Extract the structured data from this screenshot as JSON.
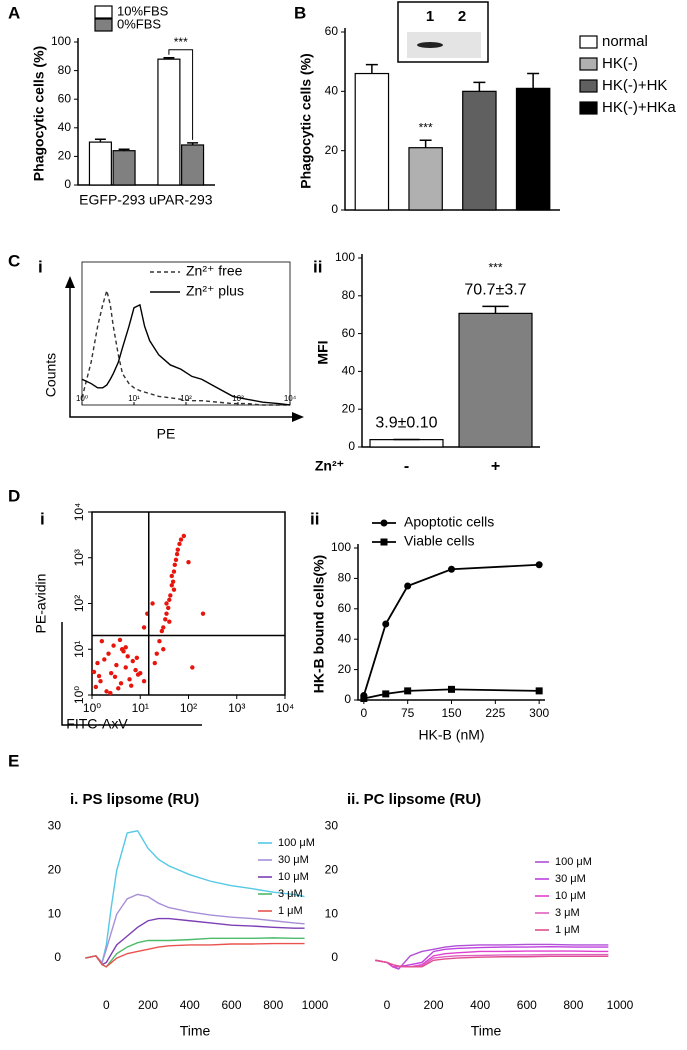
{
  "chart_data": [
    {
      "type": "bar",
      "panel": "A",
      "ylabel": "Phagocytic cells (%)",
      "categories": [
        "EGFP-293",
        "uPAR-293"
      ],
      "series": [
        {
          "name": "10%FBS",
          "color": "#ffffff",
          "values": [
            30,
            88
          ],
          "errors": [
            2,
            1
          ]
        },
        {
          "name": "0%FBS",
          "color": "#808080",
          "values": [
            24,
            28
          ],
          "errors": [
            1,
            1.5
          ]
        }
      ],
      "ylim": [
        0,
        100
      ],
      "yticks": [
        0,
        20,
        40,
        60,
        80,
        100
      ],
      "legend": "top-left",
      "annotation": "***"
    },
    {
      "type": "bar",
      "panel": "B",
      "ylabel": "Phagocytic cells (%)",
      "categories": [
        "normal",
        "HK(-)",
        "HK(-)+HK",
        "HK(-)+HKa"
      ],
      "values": [
        46,
        21,
        40,
        41
      ],
      "errors": [
        3,
        2.5,
        3,
        5
      ],
      "colors": [
        "#ffffff",
        "#b0b0b0",
        "#606060",
        "#000000"
      ],
      "ylim": [
        0,
        60
      ],
      "yticks": [
        0,
        20,
        40,
        60
      ],
      "legend": "right",
      "annotation": "***",
      "inset_labels": [
        "1",
        "2"
      ]
    },
    {
      "type": "line",
      "panel": "C",
      "subpanel": "i",
      "xlabel": "PE",
      "ylabel": "Counts",
      "xscale": "log",
      "xlim": [
        1,
        10000
      ],
      "xticks": [
        {
          "value": 1,
          "label": "10⁰"
        },
        {
          "value": 10,
          "label": "10¹"
        },
        {
          "value": 100,
          "label": "10²"
        },
        {
          "value": 1000,
          "label": "10³"
        },
        {
          "value": 10000,
          "label": "10⁴"
        }
      ],
      "ylim": [
        0,
        100
      ],
      "legend": "top-right",
      "x": [
        1,
        1.5,
        2,
        2.5,
        3,
        3.5,
        4,
        5,
        6,
        8,
        10,
        13,
        16,
        20,
        30,
        50,
        80,
        130,
        200,
        400,
        800,
        1500,
        3000,
        6000,
        10000
      ],
      "series": [
        {
          "name": "Zn²⁺ free",
          "color": "#333333",
          "dash": true,
          "values": [
            5,
            30,
            55,
            70,
            80,
            70,
            55,
            35,
            22,
            15,
            12,
            10,
            9,
            8,
            6,
            5,
            4,
            3,
            3,
            2,
            1,
            1,
            0,
            0,
            0
          ]
        },
        {
          "name": "Zn²⁺ plus",
          "color": "#000000",
          "values": [
            18,
            15,
            12,
            12,
            14,
            18,
            22,
            30,
            40,
            55,
            68,
            70,
            55,
            45,
            35,
            28,
            25,
            20,
            18,
            12,
            6,
            4,
            2,
            1,
            0
          ]
        }
      ]
    },
    {
      "type": "bar",
      "subpanel": "ii",
      "ylabel": "MFI",
      "xlabel": "Zn²⁺",
      "categories": [
        "-",
        "+"
      ],
      "values": [
        3.9,
        70.7
      ],
      "errors": [
        0.1,
        3.7
      ],
      "value_labels": [
        "3.9±0.10",
        "70.7±3.7"
      ],
      "colors": [
        "#ffffff",
        "#808080"
      ],
      "ylim": [
        0,
        100
      ],
      "yticks": [
        0,
        20,
        40,
        60,
        80,
        100
      ],
      "annotation": "***"
    },
    {
      "type": "scatter",
      "panel": "D",
      "subpanel": "i",
      "xlabel": "FITC-AxV",
      "ylabel": "PE-avidin",
      "xscale": "log",
      "yscale": "log",
      "color": "#e8150c",
      "xlim": [
        1,
        10000
      ],
      "ylim": [
        1,
        10000
      ],
      "xticks": [
        {
          "value": 1,
          "label": "10⁰"
        },
        {
          "value": 10,
          "label": "10¹"
        },
        {
          "value": 100,
          "label": "10²"
        },
        {
          "value": 1000,
          "label": "10³"
        },
        {
          "value": 10000,
          "label": "10⁴"
        }
      ],
      "yticks": [
        {
          "value": 1,
          "label": "10⁰"
        },
        {
          "value": 10,
          "label": "10¹"
        },
        {
          "value": 100,
          "label": "10²"
        },
        {
          "value": 1000,
          "label": "10³"
        },
        {
          "value": 10000,
          "label": "10⁴"
        }
      ],
      "quadrant_x": 15,
      "quadrant_y": 20,
      "x": [
        1.2,
        1.5,
        2,
        2.5,
        3,
        4,
        5,
        6,
        8,
        1.3,
        1.8,
        2.2,
        3.5,
        4.5,
        7,
        9,
        1.1,
        2.8,
        5.5,
        6.5,
        1.6,
        3.2,
        4.2,
        8.5,
        10,
        12,
        2.4,
        1.4,
        3.8,
        5,
        20,
        25,
        30,
        35,
        40,
        45,
        50,
        55,
        60,
        70,
        80,
        22,
        28,
        33,
        38,
        42,
        48,
        52,
        58,
        65,
        30,
        40,
        50,
        45,
        35,
        120,
        200,
        100,
        12,
        14,
        18
      ],
      "y": [
        1.5,
        2,
        1.2,
        3,
        2.5,
        1.8,
        4,
        2.2,
        3.5,
        5,
        6,
        8,
        1.4,
        9,
        5.5,
        2.8,
        3.2,
        12,
        7,
        1.6,
        15,
        4.5,
        10,
        6.5,
        3,
        2,
        1.1,
        2.6,
        16,
        11,
        5,
        15,
        30,
        60,
        120,
        250,
        500,
        900,
        1500,
        2500,
        3000,
        8,
        25,
        45,
        80,
        150,
        300,
        700,
        1200,
        2000,
        10,
        40,
        200,
        400,
        100,
        4,
        60,
        800,
        30,
        60,
        100
      ]
    },
    {
      "type": "line",
      "subpanel": "ii",
      "xlabel": "HK-B (nM)",
      "ylabel": "HK-B bound cells(%)",
      "legend": "top-left",
      "xlim": [
        -10,
        310
      ],
      "xticks": [
        0,
        75,
        150,
        225,
        300
      ],
      "ylim": [
        0,
        100
      ],
      "yticks": [
        0,
        20,
        40,
        60,
        80,
        100
      ],
      "x": [
        0,
        37.5,
        75,
        150,
        300
      ],
      "series": [
        {
          "name": "Apoptotic cells",
          "color": "#000000",
          "marker": "circle",
          "values": [
            3,
            50,
            75,
            86,
            89
          ],
          "errors": [
            1,
            3,
            3,
            4,
            4
          ]
        },
        {
          "name": "Viable cells",
          "color": "#000000",
          "marker": "square",
          "values": [
            1,
            4,
            6,
            7,
            6
          ],
          "errors": [
            1,
            2,
            3,
            2,
            1
          ]
        }
      ]
    },
    {
      "type": "line",
      "panel": "E",
      "title": "i. PS lipsome (RU)",
      "xlabel": "Time",
      "legend": "top-right",
      "xlim": [
        -150,
        1000
      ],
      "xticks": [
        0,
        200,
        400,
        600,
        800,
        1000
      ],
      "ylim": [
        -5,
        31
      ],
      "yticks": [
        0,
        10,
        20,
        30
      ],
      "x": [
        -100,
        -50,
        -20,
        0,
        25,
        50,
        100,
        150,
        200,
        250,
        300,
        400,
        500,
        600,
        700,
        800,
        900,
        950
      ],
      "series": [
        {
          "name": "100 μM",
          "color": "#55c8e6",
          "values": [
            0,
            0.5,
            -1,
            3,
            12,
            20,
            28.5,
            29,
            25,
            22.5,
            21,
            19,
            17.5,
            16.5,
            15.8,
            15,
            14.5,
            14
          ]
        },
        {
          "name": "30 μM",
          "color": "#a78fd8",
          "values": [
            0,
            0.5,
            -1,
            2,
            6,
            10,
            13.5,
            14.5,
            14,
            12.5,
            11.5,
            10.5,
            9.8,
            9.3,
            9,
            8.5,
            8,
            7.8
          ]
        },
        {
          "name": "10 μM",
          "color": "#7d3fb5",
          "values": [
            0,
            0.5,
            -1.5,
            -1,
            1,
            3,
            5,
            7,
            8.5,
            9,
            9,
            8.5,
            8,
            7.5,
            7.3,
            7,
            6.8,
            6.8
          ]
        },
        {
          "name": "3 μM",
          "color": "#4cbb6a",
          "values": [
            0,
            0.5,
            -1.5,
            -2,
            -0.5,
            1,
            2.5,
            3.5,
            4,
            4,
            4,
            4.2,
            4.5,
            4.5,
            4.5,
            4.6,
            4.5,
            4.5
          ]
        },
        {
          "name": "1 μM",
          "color": "#e8534f",
          "values": [
            0,
            0.5,
            -1.5,
            -2,
            -1,
            0,
            1,
            1.5,
            2,
            2.5,
            2.8,
            3,
            3,
            3.2,
            3.2,
            3.3,
            3.3,
            3.3
          ]
        }
      ]
    },
    {
      "type": "line",
      "title": "ii. PC lipsome (RU)",
      "xlabel": "Time",
      "legend": "top-right",
      "xlim": [
        -150,
        1000
      ],
      "xticks": [
        0,
        200,
        400,
        600,
        800,
        1000
      ],
      "ylim": [
        -5,
        31
      ],
      "yticks": [
        0,
        10,
        20,
        30
      ],
      "x": [
        -50,
        0,
        25,
        50,
        100,
        150,
        200,
        250,
        300,
        400,
        500,
        600,
        700,
        800,
        900,
        950
      ],
      "series": [
        {
          "name": "100 μM",
          "color": "#b04fd8",
          "values": [
            -0.5,
            -1,
            -2,
            -2.5,
            0.5,
            1.5,
            2,
            2.5,
            2.8,
            3,
            3,
            3.1,
            3.1,
            3,
            3,
            3
          ]
        },
        {
          "name": "30 μM",
          "color": "#c040e0",
          "values": [
            -0.5,
            -1,
            -2,
            -2,
            -1.5,
            -1,
            1.5,
            2,
            2.2,
            2.4,
            2.5,
            2.5,
            2.6,
            2.5,
            2.5,
            2.5
          ]
        },
        {
          "name": "10 μM",
          "color": "#e040d0",
          "values": [
            -0.5,
            -1,
            -2,
            -2,
            -2,
            -1.5,
            0.5,
            1,
            1.2,
            1.5,
            1.5,
            1.6,
            1.6,
            1.6,
            1.5,
            1.5
          ]
        },
        {
          "name": "3 μM",
          "color": "#e060c0",
          "values": [
            -0.5,
            -1,
            -1.5,
            -2,
            -2,
            -1.8,
            0,
            0.3,
            0.5,
            0.6,
            0.7,
            0.7,
            0.8,
            0.8,
            0.8,
            0.8
          ]
        },
        {
          "name": "1 μM",
          "color": "#e05090",
          "values": [
            -0.5,
            -1,
            -1.5,
            -1.8,
            -2,
            -2,
            -0.5,
            -0.2,
            0,
            0.2,
            0.3,
            0.3,
            0.4,
            0.4,
            0.4,
            0.4
          ]
        }
      ]
    }
  ]
}
